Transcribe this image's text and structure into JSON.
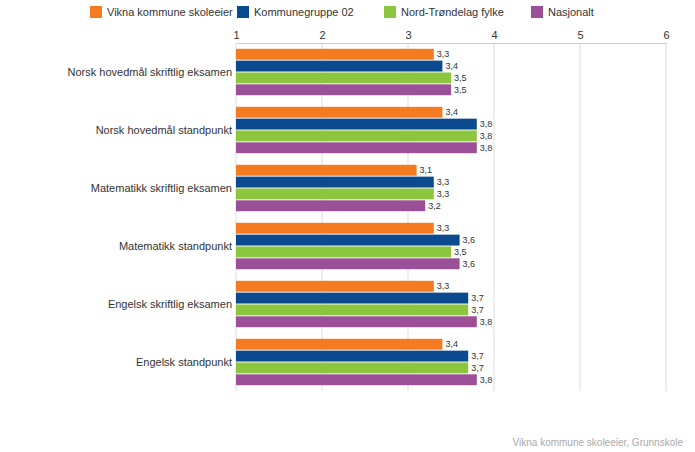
{
  "chart_data": {
    "type": "bar",
    "orientation": "horizontal",
    "categories": [
      "Norsk hovedmål skriftlig eksamen",
      "Norsk hovedmål standpunkt",
      "Matematikk skriftlig eksamen",
      "Matematikk standpunkt",
      "Engelsk skriftlig eksamen",
      "Engelsk standpunkt"
    ],
    "series": [
      {
        "name": "Vikna kommune skoleeier",
        "color": "#f47b20",
        "values": [
          3.3,
          3.4,
          3.1,
          3.3,
          3.3,
          3.4
        ],
        "value_labels": [
          "3,3",
          "3,4",
          "3,1",
          "3,3",
          "3,3",
          "3,4"
        ]
      },
      {
        "name": "Kommunegruppe 02",
        "color": "#0b4a8f",
        "values": [
          3.4,
          3.8,
          3.3,
          3.6,
          3.7,
          3.7
        ],
        "value_labels": [
          "3,4",
          "3,8",
          "3,3",
          "3,6",
          "3,7",
          "3,7"
        ]
      },
      {
        "name": "Nord-Trøndelag fylke",
        "color": "#8cc63f",
        "values": [
          3.5,
          3.8,
          3.3,
          3.5,
          3.7,
          3.7
        ],
        "value_labels": [
          "3,5",
          "3,8",
          "3,3",
          "3,5",
          "3,7",
          "3,7"
        ]
      },
      {
        "name": "Nasjonalt",
        "color": "#9b4f96",
        "values": [
          3.5,
          3.8,
          3.2,
          3.6,
          3.8,
          3.8
        ],
        "value_labels": [
          "3,5",
          "3,8",
          "3,2",
          "3,6",
          "3,8",
          "3,8"
        ]
      }
    ],
    "xlim": [
      1,
      6
    ],
    "xticks": [
      1,
      2,
      3,
      4,
      5,
      6
    ],
    "grid": true,
    "data_labels": true,
    "legend": "top",
    "annotations": [
      "Vikna kommune skoleeier, Grunnskole"
    ]
  }
}
